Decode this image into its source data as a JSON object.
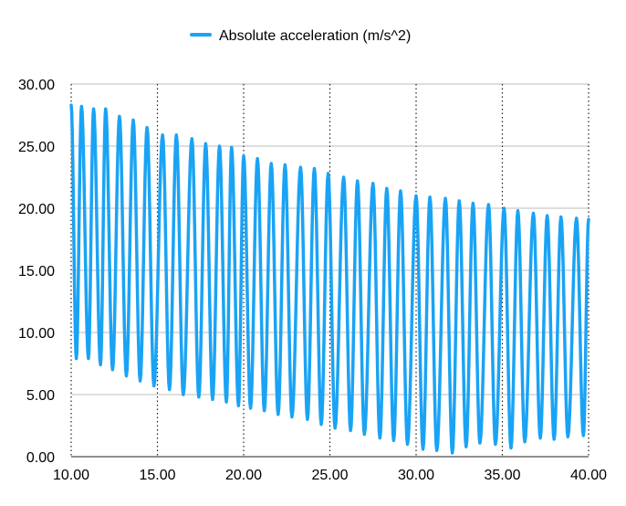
{
  "chart_data": {
    "type": "line",
    "title": "",
    "xlabel": "",
    "ylabel": "",
    "xlim": [
      10,
      40
    ],
    "ylim": [
      0,
      30
    ],
    "x_ticks": [
      "10.00",
      "15.00",
      "20.00",
      "25.00",
      "30.00",
      "35.00",
      "40.00"
    ],
    "y_ticks": [
      "0.00",
      "5.00",
      "10.00",
      "15.00",
      "20.00",
      "25.00",
      "30.00"
    ],
    "grid": "horizontal solid, vertical dotted",
    "legend_position": "top-center",
    "series": [
      {
        "name": "Absolute acceleration (m/s^2)",
        "color": "#1aa3f5",
        "oscillation_period": 0.84,
        "peaks": [
          {
            "x": 10.0,
            "y": 28.3
          },
          {
            "x": 10.6,
            "y": 28.2
          },
          {
            "x": 11.3,
            "y": 28.0
          },
          {
            "x": 12.0,
            "y": 28.0
          },
          {
            "x": 12.8,
            "y": 27.4
          },
          {
            "x": 13.6,
            "y": 27.1
          },
          {
            "x": 14.4,
            "y": 26.5
          },
          {
            "x": 15.3,
            "y": 25.9
          },
          {
            "x": 16.1,
            "y": 25.9
          },
          {
            "x": 17.0,
            "y": 25.6
          },
          {
            "x": 17.8,
            "y": 25.2
          },
          {
            "x": 18.6,
            "y": 25.0
          },
          {
            "x": 19.3,
            "y": 24.9
          },
          {
            "x": 20.0,
            "y": 24.2
          },
          {
            "x": 20.8,
            "y": 24.0
          },
          {
            "x": 21.6,
            "y": 23.6
          },
          {
            "x": 22.4,
            "y": 23.5
          },
          {
            "x": 23.3,
            "y": 23.3
          },
          {
            "x": 24.1,
            "y": 23.2
          },
          {
            "x": 24.9,
            "y": 22.8
          },
          {
            "x": 25.8,
            "y": 22.5
          },
          {
            "x": 26.6,
            "y": 22.2
          },
          {
            "x": 27.5,
            "y": 22.0
          },
          {
            "x": 28.3,
            "y": 21.6
          },
          {
            "x": 29.1,
            "y": 21.4
          },
          {
            "x": 30.0,
            "y": 21.0
          },
          {
            "x": 30.8,
            "y": 20.9
          },
          {
            "x": 31.7,
            "y": 20.8
          },
          {
            "x": 32.5,
            "y": 20.6
          },
          {
            "x": 33.3,
            "y": 20.4
          },
          {
            "x": 34.2,
            "y": 20.3
          },
          {
            "x": 35.1,
            "y": 20.0
          },
          {
            "x": 35.9,
            "y": 19.8
          },
          {
            "x": 36.8,
            "y": 19.6
          },
          {
            "x": 37.6,
            "y": 19.4
          },
          {
            "x": 38.4,
            "y": 19.3
          },
          {
            "x": 39.3,
            "y": 19.2
          },
          {
            "x": 40.0,
            "y": 19.1
          }
        ],
        "troughs": [
          {
            "x": 10.3,
            "y": 7.9
          },
          {
            "x": 11.0,
            "y": 7.9
          },
          {
            "x": 11.7,
            "y": 7.4
          },
          {
            "x": 12.4,
            "y": 7.0
          },
          {
            "x": 13.2,
            "y": 6.5
          },
          {
            "x": 14.0,
            "y": 6.1
          },
          {
            "x": 14.8,
            "y": 5.7
          },
          {
            "x": 15.7,
            "y": 5.4
          },
          {
            "x": 16.5,
            "y": 5.0
          },
          {
            "x": 17.4,
            "y": 4.8
          },
          {
            "x": 18.2,
            "y": 4.6
          },
          {
            "x": 19.0,
            "y": 4.4
          },
          {
            "x": 19.7,
            "y": 4.1
          },
          {
            "x": 20.4,
            "y": 3.9
          },
          {
            "x": 21.2,
            "y": 3.7
          },
          {
            "x": 22.0,
            "y": 3.4
          },
          {
            "x": 22.8,
            "y": 3.2
          },
          {
            "x": 23.7,
            "y": 3.0
          },
          {
            "x": 24.5,
            "y": 2.6
          },
          {
            "x": 25.3,
            "y": 2.3
          },
          {
            "x": 26.2,
            "y": 2.1
          },
          {
            "x": 27.0,
            "y": 1.8
          },
          {
            "x": 27.9,
            "y": 1.5
          },
          {
            "x": 28.7,
            "y": 1.3
          },
          {
            "x": 29.5,
            "y": 1.0
          },
          {
            "x": 30.4,
            "y": 0.6
          },
          {
            "x": 31.2,
            "y": 0.5
          },
          {
            "x": 32.1,
            "y": 0.3
          },
          {
            "x": 32.9,
            "y": 0.8
          },
          {
            "x": 33.7,
            "y": 1.1
          },
          {
            "x": 34.6,
            "y": 1.0
          },
          {
            "x": 35.5,
            "y": 0.7
          },
          {
            "x": 36.3,
            "y": 1.2
          },
          {
            "x": 37.2,
            "y": 1.5
          },
          {
            "x": 38.0,
            "y": 1.4
          },
          {
            "x": 38.8,
            "y": 1.6
          },
          {
            "x": 39.7,
            "y": 1.7
          }
        ]
      }
    ]
  }
}
